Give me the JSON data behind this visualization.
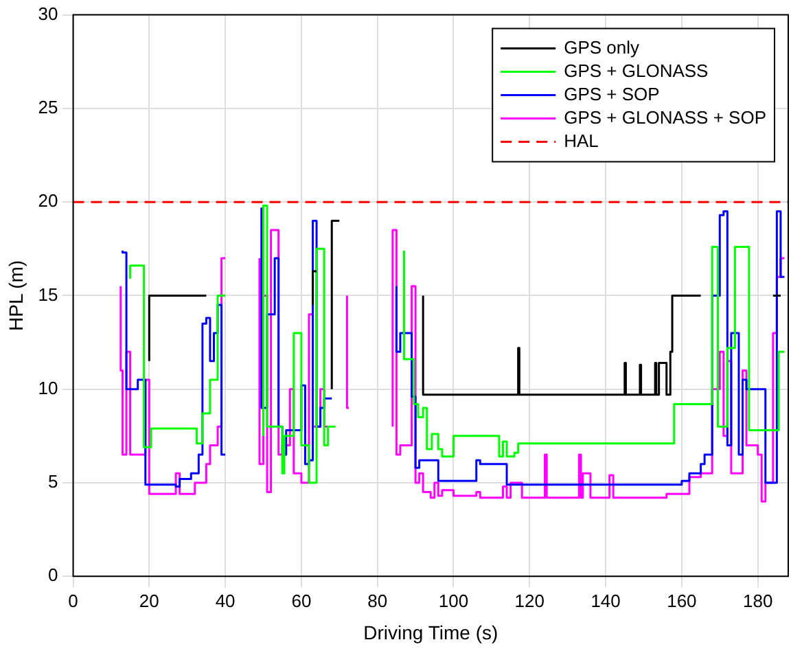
{
  "chart_data": {
    "type": "step",
    "xlabel": "Driving Time (s)",
    "ylabel": "HPL (m)",
    "xlim": [
      0,
      188
    ],
    "ylim": [
      0,
      30
    ],
    "xticks": [
      0,
      20,
      40,
      60,
      80,
      100,
      120,
      140,
      160,
      180
    ],
    "yticks": [
      0,
      5,
      10,
      15,
      20,
      25,
      30
    ],
    "grid": true,
    "legend": "top right",
    "line_style": "solid",
    "marker": "none",
    "ref_lines": [
      {
        "axis": "y",
        "value": 20,
        "label": "HAL",
        "color": "#ff0000",
        "line_style": "dashed"
      }
    ],
    "series": [
      {
        "name": "GPS only",
        "color": "#000000",
        "x": [
          20,
          33,
          35,
          36,
          63,
          63.5,
          64,
          65,
          68,
          69,
          70,
          71,
          92,
          93,
          117,
          117.3,
          117.6,
          145,
          145.3,
          145.6,
          149,
          149.3,
          149.6,
          153,
          153.3,
          154,
          155,
          156,
          157,
          157.5,
          159,
          165,
          166,
          184,
          186
        ],
        "values": [
          11.5,
          15,
          15,
          null,
          14.5,
          16.3,
          16.3,
          null,
          10,
          19,
          19,
          null,
          15,
          9.7,
          9.7,
          12.2,
          9.7,
          9.7,
          11.4,
          9.7,
          9.7,
          11.3,
          9.7,
          9.7,
          11.4,
          9.7,
          11.4,
          11.4,
          9.7,
          12,
          15,
          15,
          null,
          15,
          15
        ]
      },
      {
        "name": "GPS + GLONASS",
        "color": "#00ff00",
        "x": [
          15,
          18.6,
          20.5,
          32.5,
          34,
          35,
          36,
          38,
          39,
          40,
          41,
          50,
          51,
          52,
          55,
          55.5,
          58,
          60,
          61,
          62,
          64,
          66,
          67,
          69,
          70,
          87,
          89.6,
          90.7,
          92,
          93,
          94.3,
          96,
          97,
          100,
          112,
          113,
          114,
          116,
          117,
          158,
          159,
          168,
          169.5,
          172,
          174,
          177.7,
          183,
          185.5,
          187
        ],
        "values": [
          15.9,
          16.6,
          6.9,
          7.9,
          7.1,
          8.7,
          8.7,
          10.5,
          15,
          15,
          null,
          7.5,
          19.8,
          8,
          8,
          5.5,
          7.5,
          13,
          7,
          7,
          5,
          17.5,
          7,
          8,
          null,
          17.4,
          11.6,
          9.2,
          8.5,
          9,
          6.8,
          7.6,
          6.8,
          6.4,
          7.5,
          6.4,
          7.2,
          6.4,
          6.6,
          7.1,
          9.2,
          9.2,
          17.6,
          8,
          12.2,
          17.6,
          7.8,
          7.8,
          12
        ]
      },
      {
        "name": "GPS + SOP",
        "color": "#0000ff",
        "x": [
          13,
          14,
          15,
          17,
          18,
          19,
          20,
          27,
          28,
          30,
          31,
          33,
          34,
          35,
          36,
          37,
          38,
          39,
          40,
          40.5,
          49.5,
          51,
          52,
          53,
          54,
          55,
          56,
          58,
          60,
          61,
          62,
          63,
          64,
          65,
          66,
          67,
          68,
          69,
          85,
          86,
          87,
          89,
          90,
          91,
          92,
          96,
          97,
          106,
          107,
          114,
          115,
          160,
          162,
          165,
          166,
          168,
          170,
          171,
          172,
          173,
          175,
          176,
          177,
          178,
          182,
          183,
          185,
          186,
          187
        ],
        "values": [
          17.4,
          17.3,
          10,
          10,
          10.5,
          10.5,
          4.9,
          4.9,
          4.8,
          5.2,
          5.2,
          5.5,
          6.5,
          13.5,
          13.8,
          11.5,
          13,
          14.5,
          6.5,
          null,
          19.7,
          9,
          14,
          14,
          17,
          8,
          6.5,
          7.8,
          7.8,
          10.2,
          6,
          6.2,
          19,
          8,
          9,
          9.5,
          9.5,
          null,
          15.5,
          12,
          13,
          13,
          9.6,
          5.8,
          6.2,
          6.2,
          5.1,
          5.1,
          6.2,
          6,
          4.9,
          4.9,
          5.1,
          5.5,
          6,
          6.5,
          15,
          19.3,
          19.5,
          7,
          13,
          6.5,
          10.5,
          10,
          10,
          5,
          5,
          19.5,
          16
        ]
      },
      {
        "name": "GPS + GLONASS + SOP",
        "color": "#ff00ff",
        "x": [
          12.5,
          13,
          14,
          15,
          16,
          19,
          20,
          21,
          27,
          28,
          29,
          32,
          33,
          35,
          36,
          38,
          39,
          40,
          41,
          49,
          50,
          51,
          52,
          54,
          55,
          57,
          58,
          60,
          62,
          63,
          64,
          65,
          66,
          67,
          68,
          72,
          72.5,
          73,
          84,
          85,
          86,
          87,
          89,
          90,
          91,
          92,
          94,
          95,
          96,
          97,
          100,
          101,
          106,
          107,
          108,
          113,
          114,
          115,
          118,
          119,
          124,
          124.5,
          125,
          133,
          133.5,
          134,
          136,
          137,
          141,
          142,
          143,
          156,
          162,
          165,
          168,
          170,
          171,
          172,
          173,
          175,
          176,
          177,
          178,
          180,
          181,
          182,
          184,
          185,
          186,
          187
        ],
        "values": [
          15.5,
          11,
          6.5,
          12,
          6.5,
          6.5,
          10.5,
          4.4,
          4.4,
          5.5,
          4.4,
          4.4,
          5,
          5,
          6,
          7,
          8,
          17,
          null,
          17,
          6,
          15,
          4.5,
          18.5,
          6.5,
          7,
          10,
          5.5,
          5,
          14,
          8,
          8,
          10,
          8,
          null,
          15,
          9,
          null,
          8,
          18.5,
          6.5,
          7,
          7,
          15.5,
          5,
          5.5,
          4.5,
          4.2,
          5,
          4.3,
          4.6,
          4.3,
          4.3,
          4.5,
          4.2,
          4.2,
          4.8,
          4.2,
          5,
          4.2,
          4.2,
          6.5,
          4.2,
          4.2,
          6.5,
          4.2,
          5.5,
          4.2,
          4.2,
          5.4,
          4.2,
          4.2,
          4.4,
          5.3,
          5.5,
          10,
          12,
          7.5,
          11.5,
          5.5,
          5.5,
          11,
          7,
          7,
          6.5,
          4,
          5,
          13,
          16,
          17
        ]
      }
    ]
  }
}
